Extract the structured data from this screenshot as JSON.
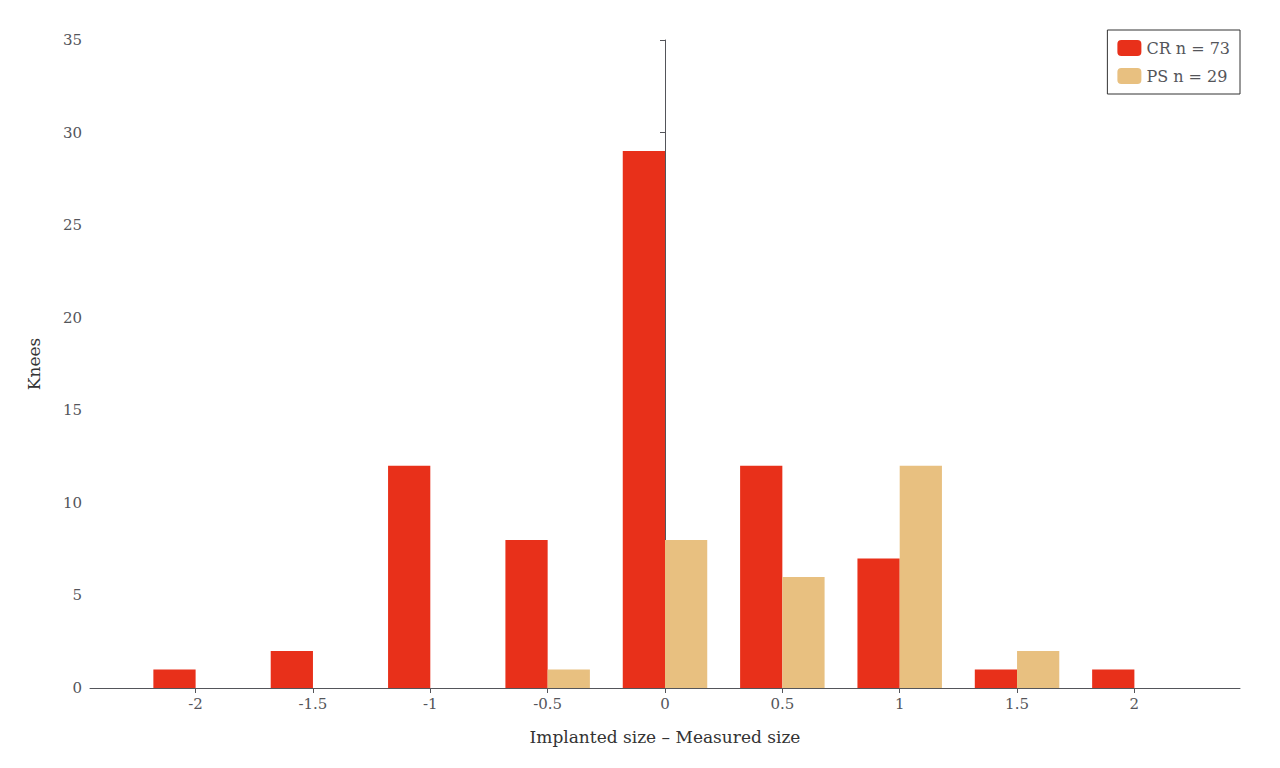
{
  "chart_data": {
    "type": "bar",
    "x": [
      -2,
      -1.5,
      -1,
      -0.5,
      0,
      0.5,
      1,
      1.5,
      2
    ],
    "series": [
      {
        "name": "CR n = 73",
        "color": "#E8301A",
        "values": [
          1,
          2,
          12,
          8,
          29,
          12,
          7,
          1,
          1
        ]
      },
      {
        "name": "PS n = 29",
        "color": "#E8C080",
        "values": [
          0,
          0,
          0,
          1,
          8,
          6,
          12,
          2,
          0
        ]
      }
    ],
    "xlabel": "Implanted size – Measured size",
    "ylabel": "Knees",
    "xlim": [
      -2.45,
      2.45
    ],
    "xticks": [
      -2,
      -1.5,
      -1,
      -0.5,
      0,
      0.5,
      1,
      1.5,
      2
    ],
    "ylim": [
      0,
      35
    ],
    "yticks": [
      0,
      5,
      10,
      15,
      20,
      25,
      30,
      35
    ],
    "grid": false,
    "legend": "upper right"
  }
}
